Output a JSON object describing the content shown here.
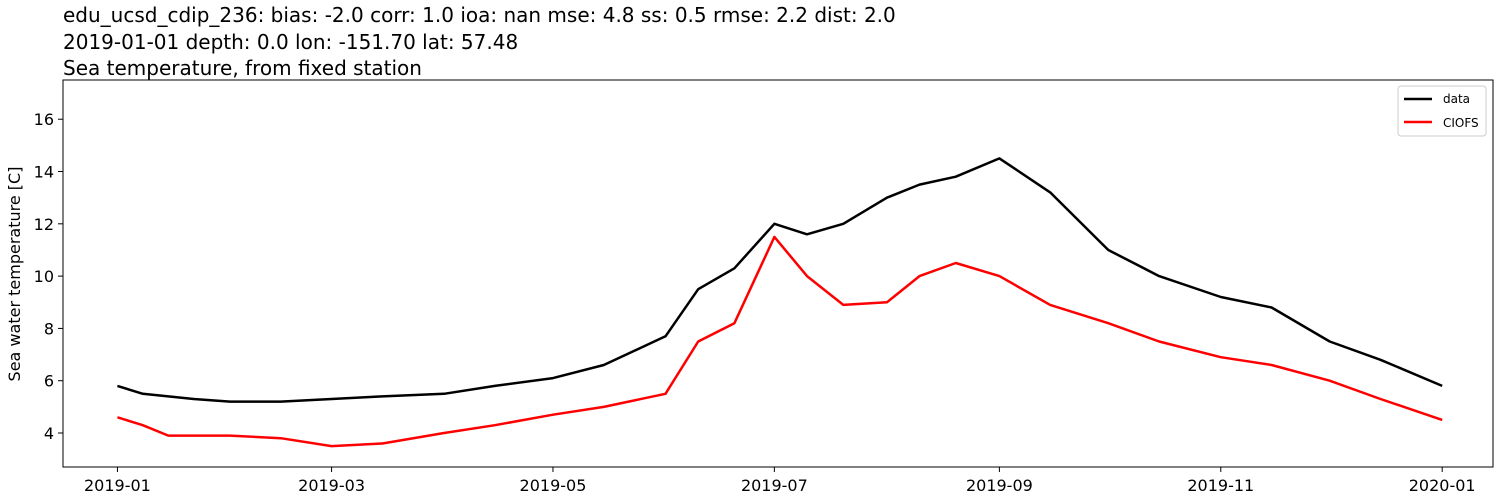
{
  "chart_data": {
    "type": "line",
    "title_lines": [
      "edu_ucsd_cdip_236: bias: -2.0  corr: 1.0  ioa: nan  mse: 4.8  ss: 0.5  rmse: 2.2  dist: 2.0",
      "2019-01-01 depth: 0.0 lon: -151.70 lat: 57.48",
      "Sea temperature, from fixed station"
    ],
    "xlabel": "",
    "ylabel": "Sea water temperature [C]",
    "xlim": [
      "2018-12-17",
      "2020-01-15"
    ],
    "ylim": [
      2.7,
      17.5
    ],
    "x_ticks": [
      "2019-01",
      "2019-03",
      "2019-05",
      "2019-07",
      "2019-09",
      "2019-11",
      "2020-01"
    ],
    "y_ticks": [
      4,
      6,
      8,
      10,
      12,
      14,
      16
    ],
    "grid": false,
    "legend_position": "top-right",
    "series": [
      {
        "name": "data",
        "color": "#000000",
        "points": [
          [
            "2019-01-01",
            5.8
          ],
          [
            "2019-01-08",
            5.5
          ],
          [
            "2019-01-15",
            5.4
          ],
          [
            "2019-01-22",
            5.3
          ],
          [
            "2019-02-01",
            5.2
          ],
          [
            "2019-02-15",
            5.2
          ],
          [
            "2019-03-01",
            5.3
          ],
          [
            "2019-03-15",
            5.4
          ],
          [
            "2019-04-01",
            5.5
          ],
          [
            "2019-04-15",
            5.8
          ],
          [
            "2019-05-01",
            6.1
          ],
          [
            "2019-05-15",
            6.6
          ],
          [
            "2019-06-01",
            7.7
          ],
          [
            "2019-06-10",
            9.5
          ],
          [
            "2019-06-20",
            10.3
          ],
          [
            "2019-07-01",
            12.0
          ],
          [
            "2019-07-10",
            11.6
          ],
          [
            "2019-07-20",
            12.0
          ],
          [
            "2019-08-01",
            13.0
          ],
          [
            "2019-08-10",
            13.5
          ],
          [
            "2019-08-20",
            13.8
          ],
          [
            "2019-09-01",
            14.5
          ],
          [
            "2019-09-15",
            13.2
          ],
          [
            "2019-10-01",
            11.0
          ],
          [
            "2019-10-15",
            10.0
          ],
          [
            "2019-11-01",
            9.2
          ],
          [
            "2019-11-15",
            8.8
          ],
          [
            "2019-12-01",
            7.5
          ],
          [
            "2019-12-15",
            6.8
          ],
          [
            "2020-01-01",
            5.8
          ]
        ]
      },
      {
        "name": "CIOFS",
        "color": "#ff0000",
        "points": [
          [
            "2019-01-01",
            4.6
          ],
          [
            "2019-01-08",
            4.3
          ],
          [
            "2019-01-15",
            3.9
          ],
          [
            "2019-02-01",
            3.9
          ],
          [
            "2019-02-15",
            3.8
          ],
          [
            "2019-03-01",
            3.5
          ],
          [
            "2019-03-15",
            3.6
          ],
          [
            "2019-04-01",
            4.0
          ],
          [
            "2019-04-15",
            4.3
          ],
          [
            "2019-05-01",
            4.7
          ],
          [
            "2019-05-15",
            5.0
          ],
          [
            "2019-06-01",
            5.5
          ],
          [
            "2019-06-10",
            7.5
          ],
          [
            "2019-06-20",
            8.2
          ],
          [
            "2019-07-01",
            11.5
          ],
          [
            "2019-07-10",
            10.0
          ],
          [
            "2019-07-20",
            8.9
          ],
          [
            "2019-08-01",
            9.0
          ],
          [
            "2019-08-10",
            10.0
          ],
          [
            "2019-08-20",
            10.5
          ],
          [
            "2019-09-01",
            10.0
          ],
          [
            "2019-09-15",
            8.9
          ],
          [
            "2019-10-01",
            8.2
          ],
          [
            "2019-10-15",
            7.5
          ],
          [
            "2019-11-01",
            6.9
          ],
          [
            "2019-11-15",
            6.6
          ],
          [
            "2019-12-01",
            6.0
          ],
          [
            "2019-12-15",
            5.3
          ],
          [
            "2020-01-01",
            4.5
          ]
        ]
      }
    ]
  }
}
